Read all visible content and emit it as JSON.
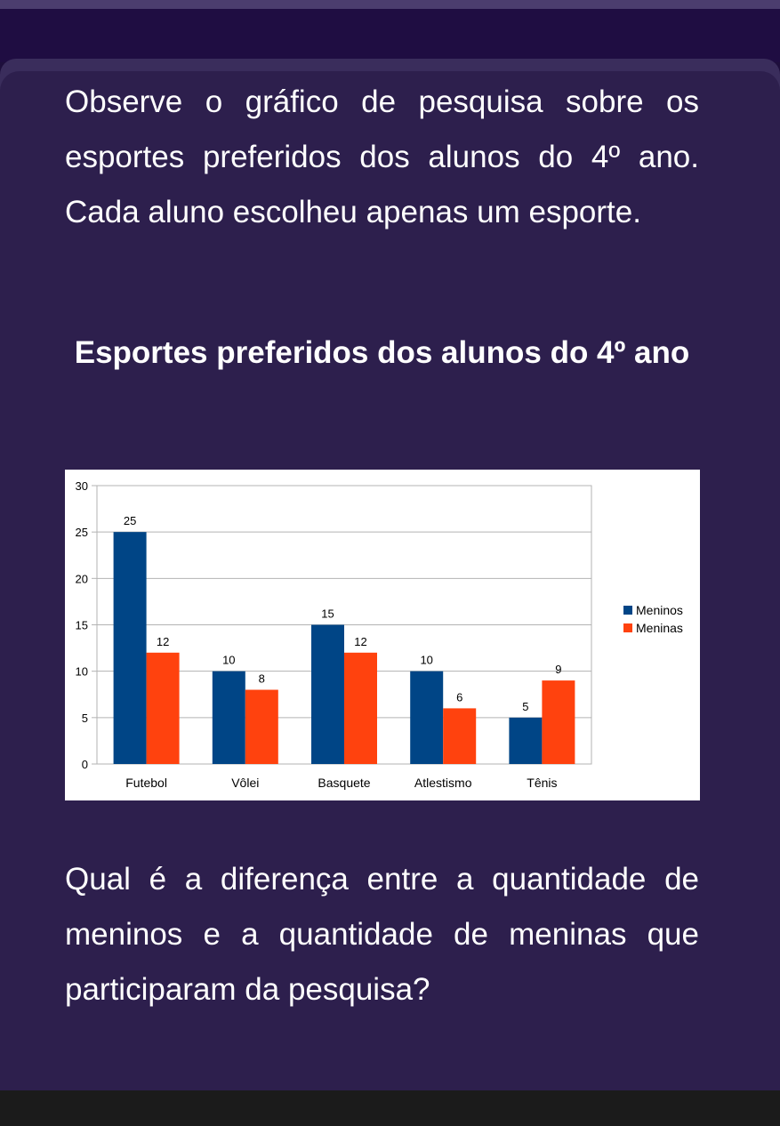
{
  "question": {
    "intro": "Observe o gráfico de pesquisa sobre os esportes preferidos dos alunos do 4º ano. Cada aluno escolheu apenas um esporte.",
    "chart_heading": "Esportes preferidos dos alunos do 4º ano",
    "prompt": "Qual é a diferença entre a quantidade de meninos e a quantidade de meninas que participaram da pesquisa?"
  },
  "colors": {
    "page_bg": "#1e0f3c",
    "card_bg": "#2d1f4d",
    "meninos": "#004586",
    "meninas": "#ff420e"
  },
  "chart_data": {
    "type": "bar",
    "title": "",
    "xlabel": "",
    "ylabel": "",
    "categories": [
      "Futebol",
      "Vôlei",
      "Basquete",
      "Atlestismo",
      "Tênis"
    ],
    "series": [
      {
        "name": "Meninos",
        "values": [
          25,
          10,
          15,
          10,
          5
        ],
        "color": "#004586"
      },
      {
        "name": "Meninas",
        "values": [
          12,
          8,
          12,
          6,
          9
        ],
        "color": "#ff420e"
      }
    ],
    "ylim": [
      0,
      30
    ],
    "yticks": [
      0,
      5,
      10,
      15,
      20,
      25,
      30
    ],
    "grid": true,
    "legend": "right",
    "data_labels": true
  }
}
